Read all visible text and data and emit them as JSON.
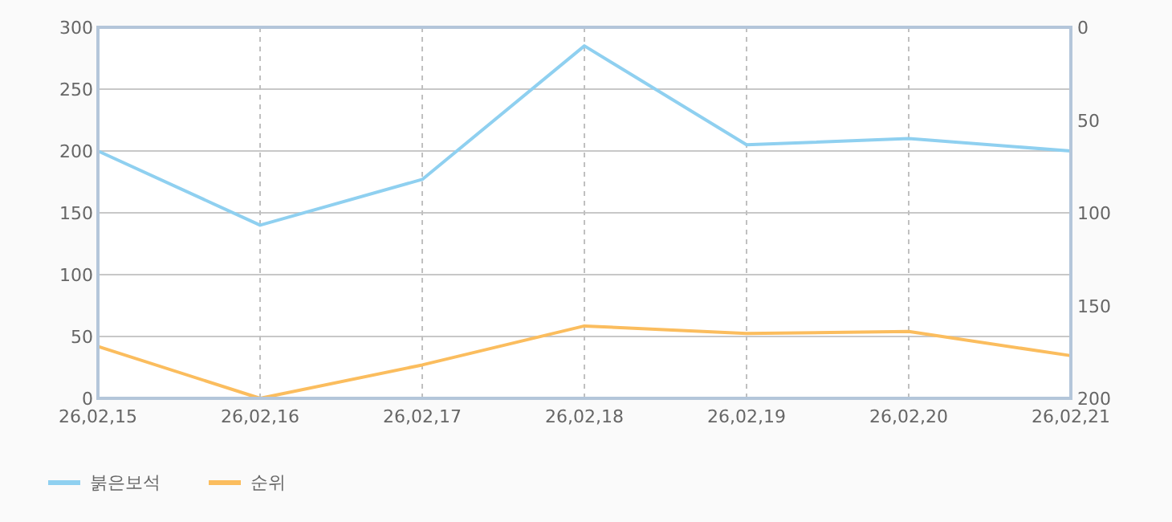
{
  "chart_data": {
    "type": "line",
    "categories": [
      "26,02,15",
      "26,02,16",
      "26,02,17",
      "26,02,18",
      "26,02,19",
      "26,02,20",
      "26,02,21"
    ],
    "series": [
      {
        "name": "붉은보석",
        "color": "#8fd0f0",
        "values": [
          200,
          140,
          177,
          285,
          205,
          210,
          200
        ]
      },
      {
        "name": "순위",
        "color": "#fbbd5e",
        "axis": "y2",
        "values": [
          172,
          200,
          182,
          161,
          165,
          164,
          177
        ]
      }
    ],
    "ylim": [
      0,
      300
    ],
    "yticks": [
      0,
      50,
      100,
      150,
      200,
      250,
      300
    ],
    "y2lim": [
      200,
      0
    ],
    "y2ticks": [
      0,
      50,
      100,
      150,
      200
    ],
    "grid": true,
    "legend": "bottom left",
    "marker": "none",
    "line_style": "solid"
  }
}
